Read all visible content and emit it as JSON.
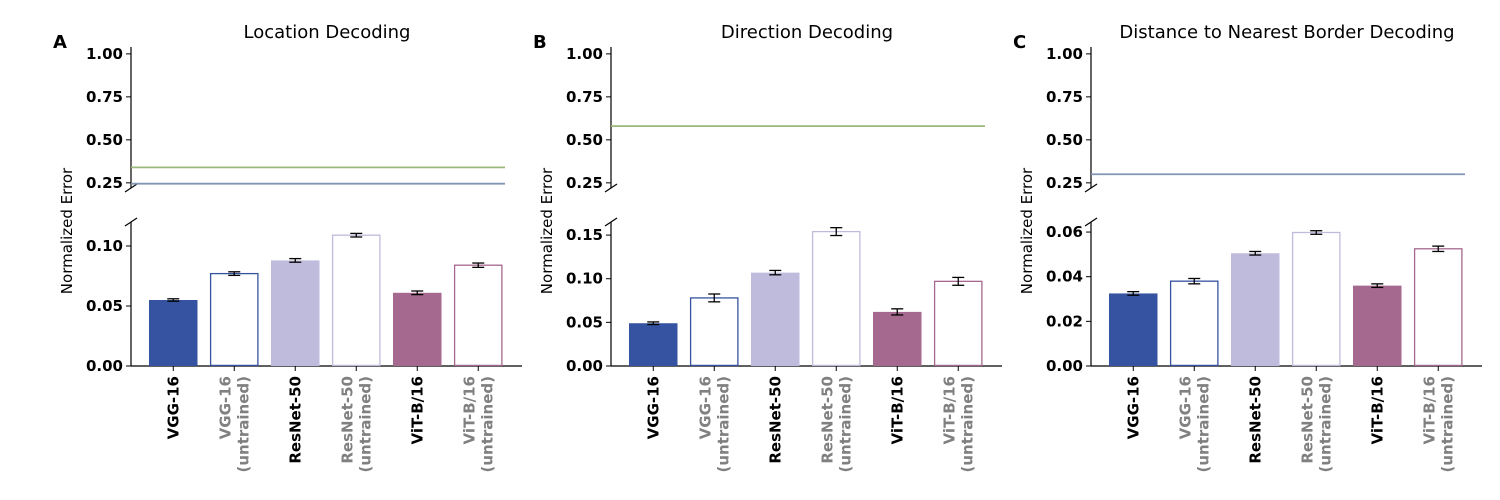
{
  "chart_data": [
    {
      "type": "bar",
      "panel_label": "A",
      "title": "Location Decoding",
      "ylabel": "Normalized Error",
      "categories": [
        {
          "line1": "VGG-16",
          "line2": "",
          "trained": true
        },
        {
          "line1": "VGG-16",
          "line2": "(untrained)",
          "trained": false
        },
        {
          "line1": "ResNet-50",
          "line2": "",
          "trained": true
        },
        {
          "line1": "ResNet-50",
          "line2": "(untrained)",
          "trained": false
        },
        {
          "line1": "ViT-B/16",
          "line2": "",
          "trained": true
        },
        {
          "line1": "ViT-B/16",
          "line2": "(untrained)",
          "trained": false
        }
      ],
      "values": [
        0.055,
        0.077,
        0.088,
        0.109,
        0.061,
        0.084
      ],
      "errors": [
        0.001,
        0.0015,
        0.0015,
        0.0015,
        0.0015,
        0.0018
      ],
      "lower_ylim": [
        0,
        0.12
      ],
      "lower_ticks": [
        "0.00",
        "0.05",
        "0.10"
      ],
      "lower_tick_values": [
        0,
        0.05,
        0.1
      ],
      "upper_ylim": [
        0.22,
        1.04
      ],
      "upper_ticks": [
        "0.25",
        "0.50",
        "0.75",
        "1.00"
      ],
      "upper_tick_values": [
        0.25,
        0.5,
        0.75,
        1.0
      ],
      "reference_lines": [
        {
          "value": 0.34,
          "color": "#99b87a"
        },
        {
          "value": 0.245,
          "color": "#8096b3"
        }
      ]
    },
    {
      "type": "bar",
      "panel_label": "B",
      "title": "Direction Decoding",
      "ylabel": "Normalized Error",
      "categories": [
        {
          "line1": "VGG-16",
          "line2": "",
          "trained": true
        },
        {
          "line1": "VGG-16",
          "line2": "(untrained)",
          "trained": false
        },
        {
          "line1": "ResNet-50",
          "line2": "",
          "trained": true
        },
        {
          "line1": "ResNet-50",
          "line2": "(untrained)",
          "trained": false
        },
        {
          "line1": "ViT-B/16",
          "line2": "",
          "trained": true
        },
        {
          "line1": "ViT-B/16",
          "line2": "(untrained)",
          "trained": false
        }
      ],
      "values": [
        0.049,
        0.078,
        0.107,
        0.154,
        0.062,
        0.097
      ],
      "errors": [
        0.0015,
        0.0045,
        0.0025,
        0.0045,
        0.0035,
        0.0045
      ],
      "lower_ylim": [
        0,
        0.165
      ],
      "lower_ticks": [
        "0.00",
        "0.05",
        "0.10",
        "0.15"
      ],
      "lower_tick_values": [
        0,
        0.05,
        0.1,
        0.15
      ],
      "upper_ylim": [
        0.22,
        1.04
      ],
      "upper_ticks": [
        "0.25",
        "0.50",
        "0.75",
        "1.00"
      ],
      "upper_tick_values": [
        0.25,
        0.5,
        0.75,
        1.0
      ],
      "reference_lines": [
        {
          "value": 0.58,
          "color": "#99b87a"
        }
      ]
    },
    {
      "type": "bar",
      "panel_label": "C",
      "title": "Distance to Nearest Border Decoding",
      "ylabel": "Normalized Error",
      "categories": [
        {
          "line1": "VGG-16",
          "line2": "",
          "trained": true
        },
        {
          "line1": "VGG-16",
          "line2": "(untrained)",
          "trained": false
        },
        {
          "line1": "ResNet-50",
          "line2": "",
          "trained": true
        },
        {
          "line1": "ResNet-50",
          "line2": "(untrained)",
          "trained": false
        },
        {
          "line1": "ViT-B/16",
          "line2": "",
          "trained": true
        },
        {
          "line1": "ViT-B/16",
          "line2": "(untrained)",
          "trained": false
        }
      ],
      "values": [
        0.0325,
        0.038,
        0.0505,
        0.0598,
        0.036,
        0.0525
      ],
      "errors": [
        0.0008,
        0.0012,
        0.0008,
        0.0008,
        0.0008,
        0.0012
      ],
      "lower_ylim": [
        0,
        0.0645
      ],
      "lower_ticks": [
        "0.00",
        "0.02",
        "0.04",
        "0.06"
      ],
      "lower_tick_values": [
        0,
        0.02,
        0.04,
        0.06
      ],
      "upper_ylim": [
        0.22,
        1.04
      ],
      "upper_ticks": [
        "0.25",
        "0.50",
        "0.75",
        "1.00"
      ],
      "upper_tick_values": [
        0.25,
        0.5,
        0.75,
        1.0
      ],
      "reference_lines": [
        {
          "value": 0.3,
          "color": "#8096b3"
        }
      ]
    }
  ],
  "style": {
    "bar_colors": [
      "#3553a0",
      "#3553a0",
      "#bfbbdc",
      "#bfbbdc",
      "#a5688e",
      "#a5688e"
    ],
    "trained_label_color": "#000000",
    "untrained_label_color": "#808080"
  }
}
